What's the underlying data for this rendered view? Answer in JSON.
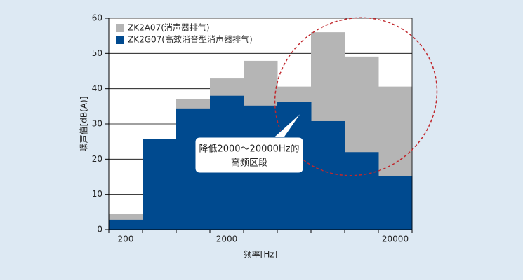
{
  "chart_data": {
    "type": "bar",
    "categories": [
      "200",
      null,
      null,
      "2000",
      null,
      null,
      null,
      null,
      "20000"
    ],
    "series": [
      {
        "name": "ZK2A07(消声器排气)",
        "color": "#b5b5b5",
        "values": [
          4.5,
          25.8,
          37,
          42.9,
          47.9,
          40.6,
          56,
          49.1,
          40.6
        ]
      },
      {
        "name": "ZK2G07(高效消音型消声器排气)",
        "color": "#004a8f",
        "values": [
          2.8,
          25.8,
          34.4,
          38,
          35.2,
          36.2,
          30.8,
          22,
          15.3
        ]
      }
    ],
    "ylim": [
      0,
      60
    ],
    "yticks": [
      0,
      10,
      20,
      30,
      40,
      50,
      60
    ],
    "grid": true,
    "xlabel": "频率[Hz]",
    "ylabel": "噪声值[dB(A)]",
    "annotation": [
      "降低2000～20000Hz的",
      "高频区段"
    ],
    "legend": "top-left"
  }
}
